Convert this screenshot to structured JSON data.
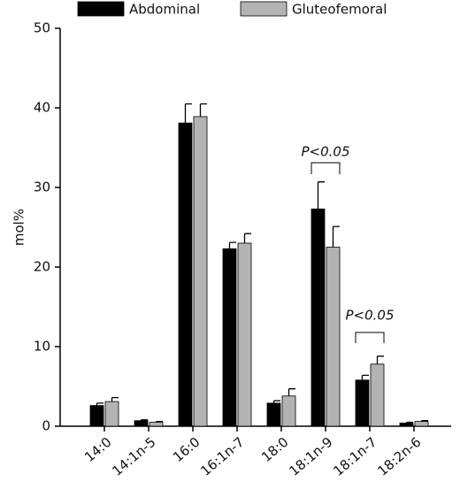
{
  "chart_data": {
    "type": "bar",
    "y_label": "mol%",
    "categories": [
      "14:0",
      "14:1n-5",
      "16:0",
      "16:1n-7",
      "18:0",
      "18:1n-9",
      "18:1n-7",
      "18:2n-6"
    ],
    "series": [
      {
        "name": "Abdominal",
        "color": "#000000",
        "values": [
          2.6,
          0.7,
          38.1,
          22.3,
          2.9,
          27.3,
          5.8,
          0.4
        ],
        "errors": [
          0.3,
          0.1,
          2.4,
          0.8,
          0.3,
          3.4,
          0.6,
          0.1
        ]
      },
      {
        "name": "Gluteofemoral",
        "color": "#b3b3b3",
        "values": [
          3.1,
          0.5,
          38.9,
          23.0,
          3.8,
          22.5,
          7.8,
          0.6
        ],
        "errors": [
          0.5,
          0.1,
          1.6,
          1.2,
          0.9,
          2.6,
          1.0,
          0.1
        ]
      }
    ],
    "ylim": [
      0,
      50
    ],
    "yticks": [
      0,
      10,
      20,
      30,
      40,
      50
    ],
    "annotations": [
      "P<0.05",
      "P<0.05"
    ],
    "legend": "top"
  }
}
